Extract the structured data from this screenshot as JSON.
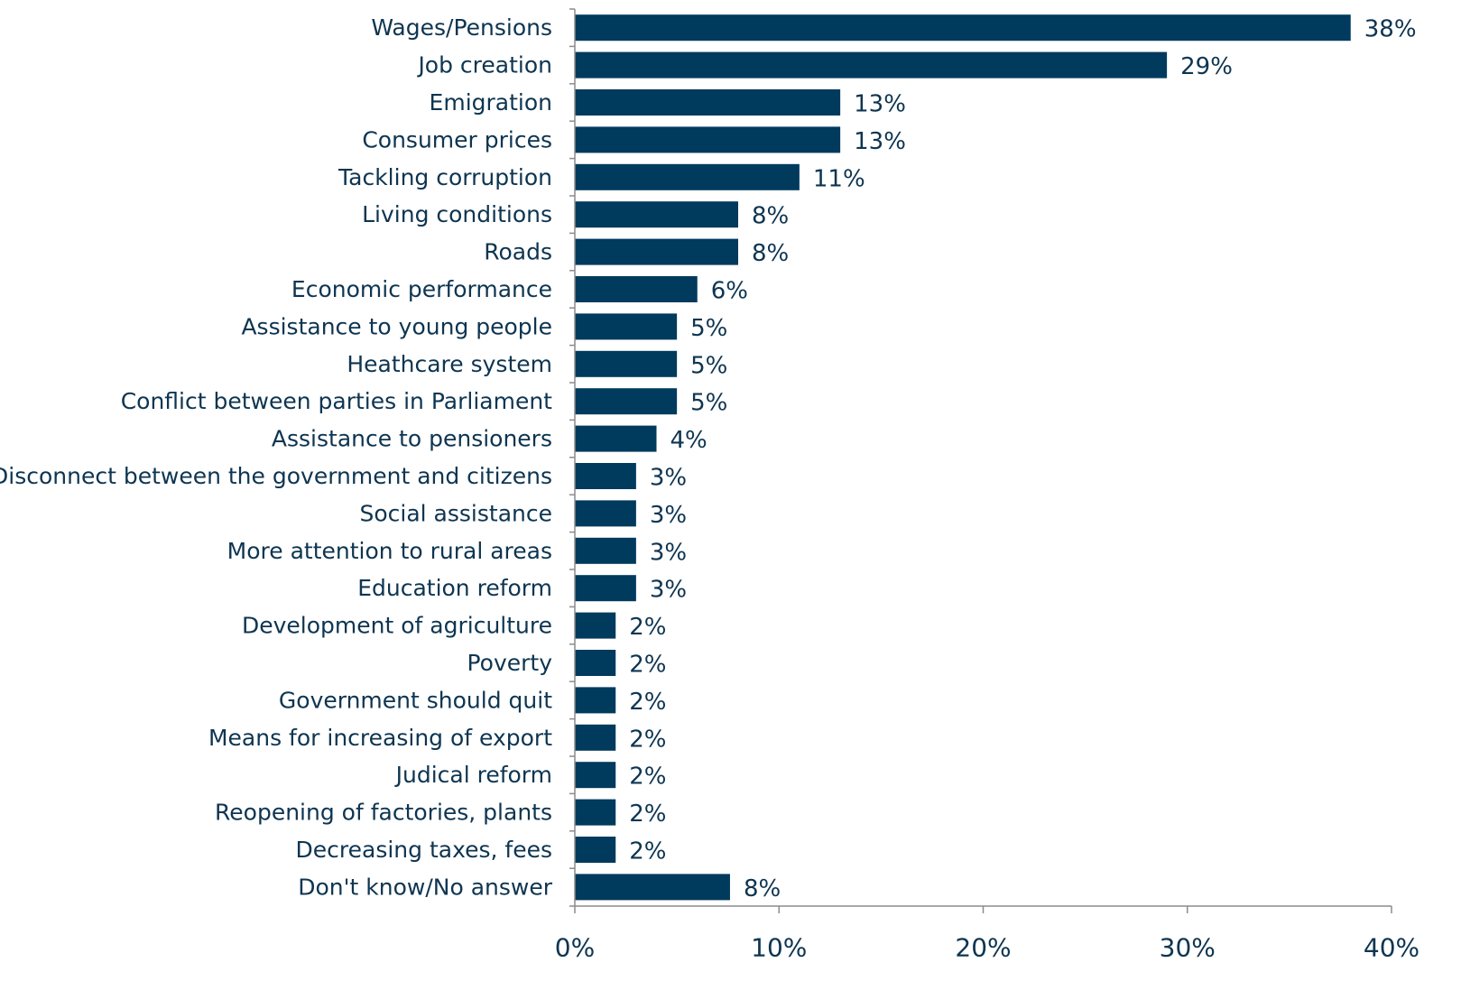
{
  "chart_data": {
    "type": "bar",
    "orientation": "horizontal",
    "categories": [
      "Wages/Pensions",
      "Job creation",
      "Emigration",
      "Consumer prices",
      "Tackling corruption",
      "Living conditions",
      "Roads",
      "Economic performance",
      "Assistance to young people",
      "Heathcare system",
      "Conflict between parties in Parliament",
      "Assistance to pensioners",
      "Disconnect between the government and citizens",
      "Social assistance",
      "More attention to rural areas",
      "Education reform",
      "Development of agriculture",
      "Poverty",
      "Government should quit",
      "Means for increasing of export",
      "Judical reform",
      "Reopening of factories, plants",
      "Decreasing taxes, fees",
      "Don't know/No answer"
    ],
    "values": [
      38,
      29,
      13,
      13,
      11,
      8,
      8,
      6,
      5,
      5,
      5,
      4,
      3,
      3,
      3,
      3,
      2,
      2,
      2,
      2,
      2,
      2,
      2,
      7.6
    ],
    "value_labels": [
      "38%",
      "29%",
      "13%",
      "13%",
      "11%",
      "8%",
      "8%",
      "6%",
      "5%",
      "5%",
      "5%",
      "4%",
      "3%",
      "3%",
      "3%",
      "3%",
      "2%",
      "2%",
      "2%",
      "2%",
      "2%",
      "2%",
      "2%",
      "8%"
    ],
    "xlim": [
      0,
      40
    ],
    "xticks": [
      0,
      10,
      20,
      30,
      40
    ],
    "xtick_labels": [
      "0%",
      "10%",
      "20%",
      "30%",
      "40%"
    ],
    "title": "",
    "xlabel": "",
    "ylabel": "",
    "grid": false,
    "legend": "none",
    "bar_color": "#003a5d",
    "text_color": "#0e3551"
  }
}
